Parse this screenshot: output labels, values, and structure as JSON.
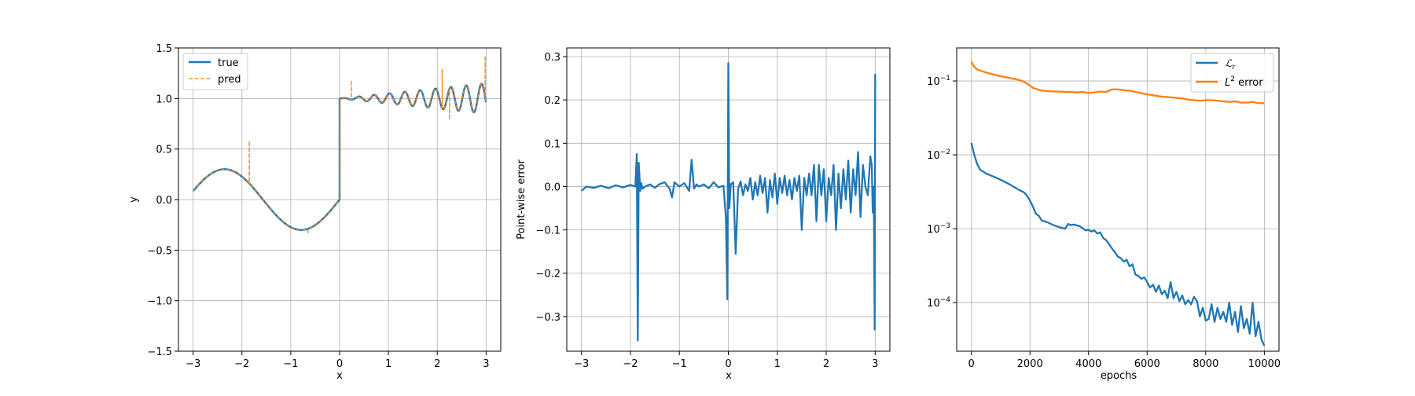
{
  "colors": {
    "true": "#1f77b4",
    "pred": "#ff7f0e",
    "grid": "#b0b0b0",
    "axes": "#000000"
  },
  "chart_data": [
    {
      "type": "line",
      "xlabel": "x",
      "ylabel": "y",
      "xlim": [
        -3.3,
        3.3
      ],
      "ylim": [
        -1.5,
        1.5
      ],
      "xticks": [
        -3,
        -2,
        -1,
        0,
        1,
        2,
        3
      ],
      "yticks": [
        -1.5,
        -1.0,
        -0.5,
        0.0,
        0.5,
        1.0,
        1.5
      ],
      "xtick_labels": [
        "−3",
        "−2",
        "−1",
        "0",
        "1",
        "2",
        "3"
      ],
      "ytick_labels": [
        "−1.5",
        "−1.0",
        "−0.5",
        "0.0",
        "0.5",
        "1.0",
        "1.5"
      ],
      "grid": true,
      "legend": "top-left",
      "series": [
        {
          "name": "true",
          "style": "solid",
          "color": "#1f77b4",
          "function": "x<=0 ? 0.3*sin(2x) : 1 + 0.05*x*sin(20x)",
          "x_range": [
            -3,
            3
          ]
        },
        {
          "name": "pred",
          "style": "dashed",
          "color": "#ff7f0e",
          "follows": "true",
          "spikes": [
            {
              "x": -1.85,
              "y": 0.58
            },
            {
              "x": -1.8,
              "y": 0.15
            },
            {
              "x": -0.65,
              "y": -0.34
            },
            {
              "x": 0.0,
              "y": 0.06
            },
            {
              "x": 0.24,
              "y": 1.18
            },
            {
              "x": 2.1,
              "y": 1.29
            },
            {
              "x": 2.25,
              "y": 0.79
            },
            {
              "x": 2.98,
              "y": 1.42
            },
            {
              "x": 3.0,
              "y": 0.6
            }
          ]
        }
      ]
    },
    {
      "type": "line",
      "xlabel": "x",
      "ylabel": "Point-wise error",
      "xlim": [
        -3.3,
        3.3
      ],
      "ylim": [
        -0.38,
        0.32
      ],
      "xticks": [
        -3,
        -2,
        -1,
        0,
        1,
        2,
        3
      ],
      "yticks": [
        -0.3,
        -0.2,
        -0.1,
        0.0,
        0.1,
        0.2,
        0.3
      ],
      "xtick_labels": [
        "−3",
        "−2",
        "−1",
        "0",
        "1",
        "2",
        "3"
      ],
      "ytick_labels": [
        "−0.3",
        "−0.2",
        "−0.1",
        "0.0",
        "0.1",
        "0.2",
        "0.3"
      ],
      "grid": true,
      "series": [
        {
          "color": "#1f77b4",
          "x": [
            -3.0,
            -2.9,
            -2.75,
            -2.6,
            -2.45,
            -2.3,
            -2.15,
            -2.0,
            -1.9,
            -1.87,
            -1.85,
            -1.83,
            -1.8,
            -1.78,
            -1.75,
            -1.7,
            -1.6,
            -1.5,
            -1.4,
            -1.3,
            -1.2,
            -1.15,
            -1.1,
            -1.0,
            -0.9,
            -0.8,
            -0.75,
            -0.7,
            -0.65,
            -0.6,
            -0.5,
            -0.4,
            -0.3,
            -0.2,
            -0.1,
            -0.05,
            -0.02,
            0.0,
            0.02,
            0.05,
            0.1,
            0.15,
            0.2,
            0.25,
            0.3,
            0.35,
            0.4,
            0.45,
            0.5,
            0.55,
            0.6,
            0.65,
            0.7,
            0.75,
            0.8,
            0.85,
            0.9,
            0.95,
            1.0,
            1.05,
            1.1,
            1.15,
            1.2,
            1.25,
            1.3,
            1.35,
            1.4,
            1.45,
            1.5,
            1.55,
            1.6,
            1.65,
            1.7,
            1.75,
            1.8,
            1.85,
            1.9,
            1.95,
            2.0,
            2.05,
            2.1,
            2.15,
            2.2,
            2.25,
            2.3,
            2.35,
            2.4,
            2.45,
            2.5,
            2.55,
            2.6,
            2.65,
            2.7,
            2.75,
            2.8,
            2.85,
            2.9,
            2.93,
            2.95,
            2.97,
            2.99,
            3.0
          ],
          "y": [
            -0.01,
            0.0,
            -0.003,
            0.002,
            -0.004,
            0.003,
            -0.002,
            0.004,
            0.0,
            0.075,
            -0.355,
            0.055,
            -0.01,
            0.008,
            -0.005,
            0.0,
            0.005,
            -0.003,
            0.006,
            0.01,
            -0.005,
            -0.025,
            0.01,
            0.0,
            0.008,
            -0.01,
            0.062,
            -0.005,
            0.005,
            0.0,
            0.005,
            -0.004,
            0.01,
            -0.002,
            0.002,
            -0.07,
            -0.26,
            0.285,
            -0.05,
            0.005,
            0.01,
            -0.155,
            -0.005,
            0.012,
            -0.02,
            0.005,
            -0.01,
            0.02,
            -0.03,
            0.01,
            -0.02,
            0.025,
            -0.015,
            0.02,
            -0.06,
            0.015,
            -0.025,
            0.03,
            -0.04,
            0.02,
            -0.015,
            0.025,
            -0.02,
            0.015,
            -0.03,
            0.02,
            -0.01,
            0.025,
            -0.1,
            0.02,
            -0.02,
            0.03,
            -0.02,
            0.05,
            -0.08,
            0.05,
            -0.02,
            0.04,
            -0.08,
            0.02,
            -0.02,
            0.05,
            -0.1,
            0.03,
            -0.05,
            0.04,
            -0.03,
            0.06,
            -0.06,
            0.04,
            -0.02,
            0.08,
            -0.07,
            0.05,
            0.0,
            -0.02,
            0.07,
            0.05,
            -0.06,
            0.0,
            -0.33,
            0.26
          ]
        }
      ]
    },
    {
      "type": "line",
      "xlabel": "epochs",
      "ylabel": "",
      "yscale": "log",
      "xlim": [
        -500,
        10500
      ],
      "ylim": [
        2.2e-05,
        0.28
      ],
      "xticks": [
        0,
        2000,
        4000,
        6000,
        8000,
        10000
      ],
      "xtick_labels": [
        "0",
        "2000",
        "4000",
        "6000",
        "8000",
        "10000"
      ],
      "yticks": [
        0.0001,
        0.001,
        0.01,
        0.1
      ],
      "ytick_labels": [
        {
          "base": "10",
          "exp": "−4"
        },
        {
          "base": "10",
          "exp": "−3"
        },
        {
          "base": "10",
          "exp": "−2"
        },
        {
          "base": "10",
          "exp": "−1"
        }
      ],
      "grid": true,
      "legend": "top-right",
      "series": [
        {
          "name": "ℒ",
          "name_subscript": "r",
          "color": "#1f77b4",
          "x": [
            0,
            100,
            200,
            300,
            500,
            800,
            1000,
            1300,
            1600,
            1800,
            1900,
            2000,
            2100,
            2200,
            2300,
            2400,
            2600,
            2800,
            3000,
            3200,
            3300,
            3400,
            3500,
            3700,
            3900,
            4000,
            4100,
            4200,
            4300,
            4400,
            4500,
            4600,
            4700,
            4800,
            4900,
            5000,
            5100,
            5200,
            5300,
            5400,
            5500,
            5600,
            5700,
            5800,
            5900,
            6000,
            6100,
            6200,
            6300,
            6400,
            6500,
            6600,
            6700,
            6800,
            6900,
            7000,
            7100,
            7200,
            7300,
            7400,
            7500,
            7600,
            7700,
            7800,
            7900,
            8000,
            8100,
            8200,
            8300,
            8400,
            8500,
            8600,
            8700,
            8800,
            8900,
            9000,
            9100,
            9200,
            9300,
            9400,
            9500,
            9600,
            9700,
            9800,
            9900,
            10000
          ],
          "y": [
            0.0145,
            0.01,
            0.0075,
            0.0063,
            0.0056,
            0.005,
            0.0046,
            0.004,
            0.0034,
            0.0031,
            0.0028,
            0.0024,
            0.002,
            0.0016,
            0.0015,
            0.0013,
            0.00122,
            0.00112,
            0.00105,
            0.001,
            0.00116,
            0.00112,
            0.00114,
            0.00108,
            0.00095,
            0.00096,
            0.00092,
            0.00095,
            0.00086,
            0.00089,
            0.00075,
            0.0007,
            0.00062,
            0.00054,
            0.00048,
            0.00042,
            0.0004,
            0.00036,
            0.00038,
            0.00031,
            0.00033,
            0.00024,
            0.00023,
            0.00021,
            0.00022,
            0.00019,
            0.00016,
            0.000175,
            0.00014,
            0.00017,
            0.00013,
            0.000145,
            0.000115,
            0.00019,
            0.000115,
            0.00014,
            0.000105,
            0.000125,
            9.5e-05,
            0.000108,
            9.5e-05,
            0.00012,
            0.000105,
            6.5e-05,
            8.5e-05,
            5.7e-05,
            6e-05,
            9.5e-05,
            5.5e-05,
            8.5e-05,
            6e-05,
            7.5e-05,
            5.5e-05,
            0.0001,
            5e-05,
            7.5e-05,
            4e-05,
            9e-05,
            4.5e-05,
            6e-05,
            3.8e-05,
            0.0001,
            3.5e-05,
            5.5e-05,
            3.2e-05,
            2.6e-05
          ]
        },
        {
          "name": "L",
          "name_superscript": "2",
          "name_suffix": " error",
          "color": "#ff7f0e",
          "x": [
            0,
            100,
            200,
            400,
            600,
            800,
            1000,
            1300,
            1600,
            1800,
            1900,
            2000,
            2100,
            2200,
            2400,
            2600,
            2800,
            3000,
            3200,
            3400,
            3600,
            3800,
            4000,
            4200,
            4400,
            4600,
            4800,
            5000,
            5200,
            5400,
            5600,
            5800,
            6000,
            6200,
            6400,
            6600,
            6800,
            7000,
            7200,
            7400,
            7600,
            7800,
            8000,
            8200,
            8400,
            8600,
            8800,
            9000,
            9200,
            9400,
            9600,
            9800,
            10000
          ],
          "y": [
            0.183,
            0.155,
            0.143,
            0.134,
            0.127,
            0.121,
            0.116,
            0.11,
            0.104,
            0.098,
            0.092,
            0.087,
            0.081,
            0.078,
            0.074,
            0.073,
            0.072,
            0.072,
            0.071,
            0.071,
            0.07,
            0.071,
            0.069,
            0.07,
            0.072,
            0.071,
            0.077,
            0.077,
            0.075,
            0.074,
            0.071,
            0.068,
            0.066,
            0.064,
            0.062,
            0.061,
            0.06,
            0.059,
            0.058,
            0.056,
            0.055,
            0.054,
            0.055,
            0.055,
            0.054,
            0.053,
            0.052,
            0.053,
            0.051,
            0.051,
            0.052,
            0.05,
            0.05
          ]
        }
      ]
    }
  ]
}
